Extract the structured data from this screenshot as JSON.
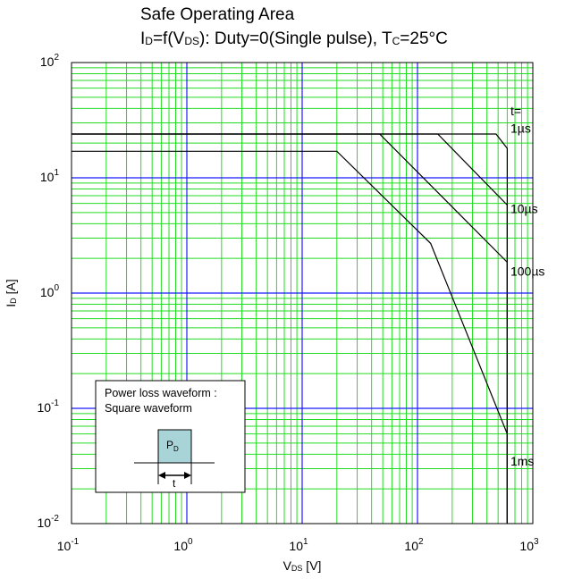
{
  "chart_data": {
    "type": "line",
    "title": "Safe Operating Area",
    "subtitle_parts": {
      "a": "I",
      "a_sub": "D",
      "b": "=f(V",
      "b_sub": "DS",
      "c": "): Duty=0(Single pulse), T",
      "c_sub": "C",
      "d": "=25°C"
    },
    "xlabel": {
      "main": "V",
      "sub": "DS",
      "unit": " [V]"
    },
    "ylabel": {
      "main": "I",
      "sub": "D",
      "unit": " [A]"
    },
    "x_scale": "log",
    "y_scale": "log",
    "xlim": [
      0.1,
      1000
    ],
    "ylim": [
      0.01,
      100
    ],
    "grid": true,
    "x_ticks": [
      {
        "base": "10",
        "exp": "-1",
        "value": 0.1
      },
      {
        "base": "10",
        "exp": "0",
        "value": 1
      },
      {
        "base": "10",
        "exp": "1",
        "value": 10
      },
      {
        "base": "10",
        "exp": "2",
        "value": 100
      },
      {
        "base": "10",
        "exp": "3",
        "value": 1000
      }
    ],
    "y_ticks": [
      {
        "base": "10",
        "exp": "-2",
        "value": 0.01
      },
      {
        "base": "10",
        "exp": "-1",
        "value": 0.1
      },
      {
        "base": "10",
        "exp": "0",
        "value": 1
      },
      {
        "base": "10",
        "exp": "1",
        "value": 10
      },
      {
        "base": "10",
        "exp": "2",
        "value": 100
      }
    ],
    "legend_header": "t=",
    "series": [
      {
        "name": "1µs",
        "label": "1µs",
        "label_at": [
          640,
          27
        ],
        "points": [
          [
            0.1,
            24
          ],
          [
            480,
            24
          ],
          [
            600,
            18
          ],
          [
            600,
            0.01
          ]
        ]
      },
      {
        "name": "10µs",
        "label": "10µs",
        "label_at": [
          640,
          5.4
        ],
        "points": [
          [
            0.1,
            24
          ],
          [
            150,
            24
          ],
          [
            600,
            5.8
          ],
          [
            600,
            0.01
          ]
        ]
      },
      {
        "name": "100µs",
        "label": "100µs",
        "label_at": [
          640,
          1.55
        ],
        "points": [
          [
            0.1,
            24
          ],
          [
            47,
            24
          ],
          [
            600,
            1.85
          ],
          [
            600,
            0.01
          ]
        ]
      },
      {
        "name": "1ms",
        "label": "1ms",
        "label_at": [
          640,
          0.035
        ],
        "points": [
          [
            0.1,
            17
          ],
          [
            20,
            17
          ],
          [
            130,
            2.7
          ],
          [
            600,
            0.06
          ],
          [
            600,
            0.01
          ]
        ]
      }
    ]
  },
  "inset": {
    "line1": "Power loss waveform :",
    "line2": "Square waveform",
    "pulse_label": "P",
    "pulse_sub": "D",
    "width_label": "t"
  },
  "colors": {
    "major_grid": "#1a1aff",
    "minor_grid": "#22dd22",
    "curve": "#000000",
    "pulse_fill": "#a8d4d8"
  }
}
